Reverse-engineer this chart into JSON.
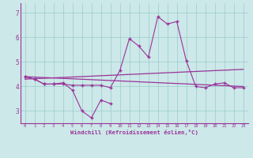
{
  "line1_x": [
    0,
    1,
    2,
    3,
    4,
    5,
    6,
    7,
    8,
    9
  ],
  "line1_y": [
    4.4,
    4.3,
    4.1,
    4.1,
    4.15,
    3.85,
    3.0,
    2.72,
    3.45,
    3.3
  ],
  "line2_x": [
    0,
    1,
    2,
    3,
    4,
    5,
    6,
    7,
    8,
    9,
    10,
    11,
    12,
    13,
    14,
    15,
    16,
    17,
    18,
    19,
    20,
    21,
    22,
    23
  ],
  "line2_y": [
    4.4,
    4.3,
    4.1,
    4.1,
    4.1,
    4.05,
    4.05,
    4.05,
    4.05,
    3.95,
    4.65,
    5.95,
    5.65,
    5.2,
    6.85,
    6.55,
    6.65,
    5.05,
    4.0,
    3.95,
    4.1,
    4.15,
    3.95,
    3.95
  ],
  "line3_x": [
    0,
    23
  ],
  "line3_y": [
    4.4,
    4.0
  ],
  "line4_x": [
    0,
    23
  ],
  "line4_y": [
    4.3,
    4.7
  ],
  "bg_color": "#cce8e8",
  "grid_color": "#99cccc",
  "line_color": "#993399",
  "xlabel": "Windchill (Refroidissement éolien,°C)",
  "yticks": [
    3,
    4,
    5,
    6,
    7
  ],
  "xticks": [
    0,
    1,
    2,
    3,
    4,
    5,
    6,
    7,
    8,
    9,
    10,
    11,
    12,
    13,
    14,
    15,
    16,
    17,
    18,
    19,
    20,
    21,
    22,
    23
  ],
  "ylim": [
    2.5,
    7.4
  ],
  "xlim": [
    -0.5,
    23.5
  ]
}
